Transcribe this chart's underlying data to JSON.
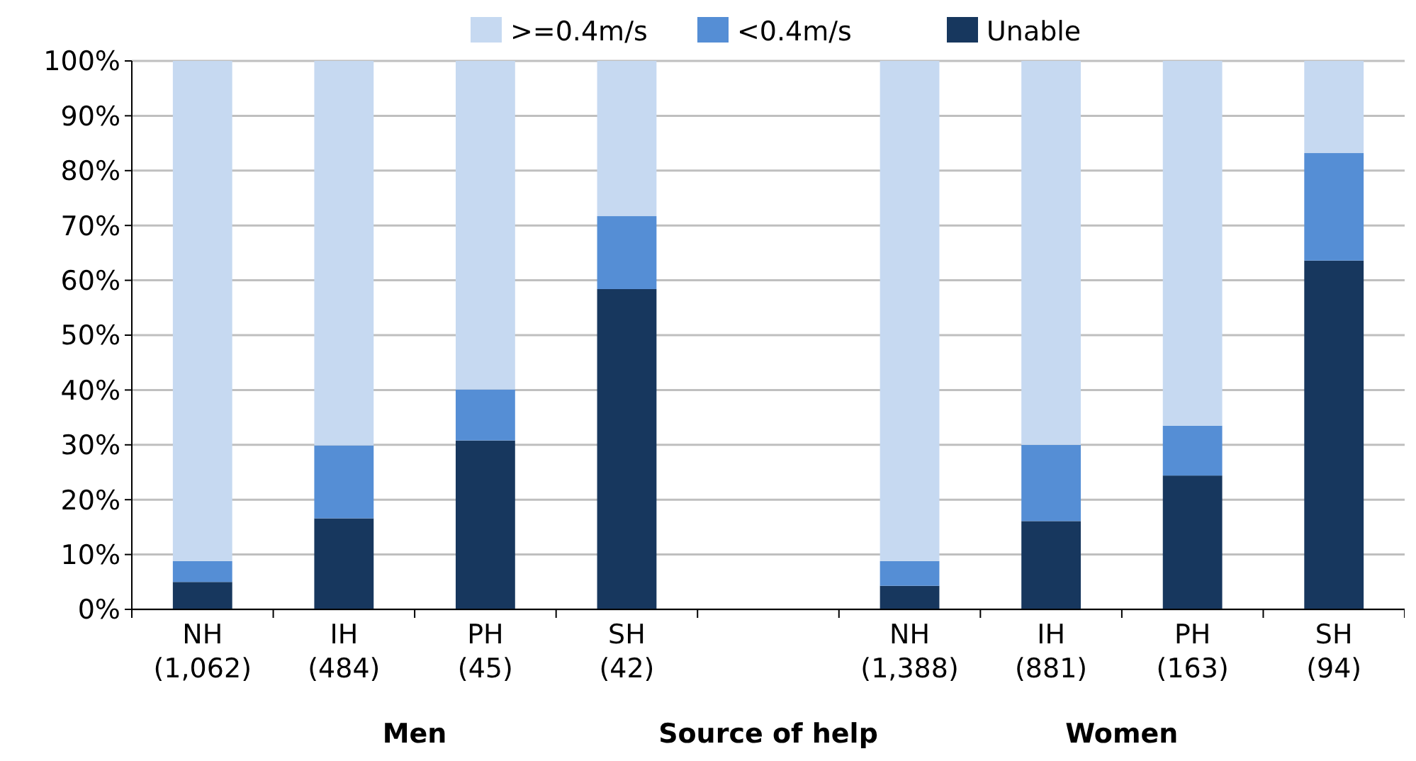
{
  "chart_data": {
    "type": "bar",
    "stacked": true,
    "xlabel": "Source of help",
    "categories": [
      "NH\n(1,062)",
      "IH\n(484)",
      "PH\n(45)",
      "SH\n(42)",
      null,
      "NH\n(1,388)",
      "IH\n(881)",
      "PH\n(163)",
      "SH\n(94)"
    ],
    "series": [
      {
        "name": "Unable",
        "color": "#17375e",
        "values": [
          5.0,
          16.6,
          30.8,
          58.4,
          null,
          4.3,
          16.1,
          24.4,
          63.6
        ]
      },
      {
        "name": "<0.4m/s",
        "color": "#558ed5",
        "values": [
          3.8,
          13.3,
          9.3,
          13.3,
          null,
          4.5,
          13.9,
          9.1,
          19.6
        ]
      },
      {
        "name": ">=0.4m/s",
        "color": "#c6d9f1",
        "values": [
          91.2,
          70.1,
          59.9,
          28.3,
          null,
          91.2,
          70.0,
          66.5,
          16.8
        ]
      }
    ],
    "annotations": [
      "Men",
      "Women"
    ],
    "ylim": [
      0,
      100
    ],
    "yticks": [
      {
        "value": 0,
        "label": "0%"
      },
      {
        "value": 10,
        "label": "10%"
      },
      {
        "value": 20,
        "label": "20%"
      },
      {
        "value": 30,
        "label": "30%"
      },
      {
        "value": 40,
        "label": "40%"
      },
      {
        "value": 50,
        "label": "50%"
      },
      {
        "value": 60,
        "label": "60%"
      },
      {
        "value": 70,
        "label": "70%"
      },
      {
        "value": 80,
        "label": "80%"
      },
      {
        "value": 90,
        "label": "90%"
      },
      {
        "value": 100,
        "label": "100%"
      }
    ],
    "grid": "y",
    "legend": "top"
  }
}
